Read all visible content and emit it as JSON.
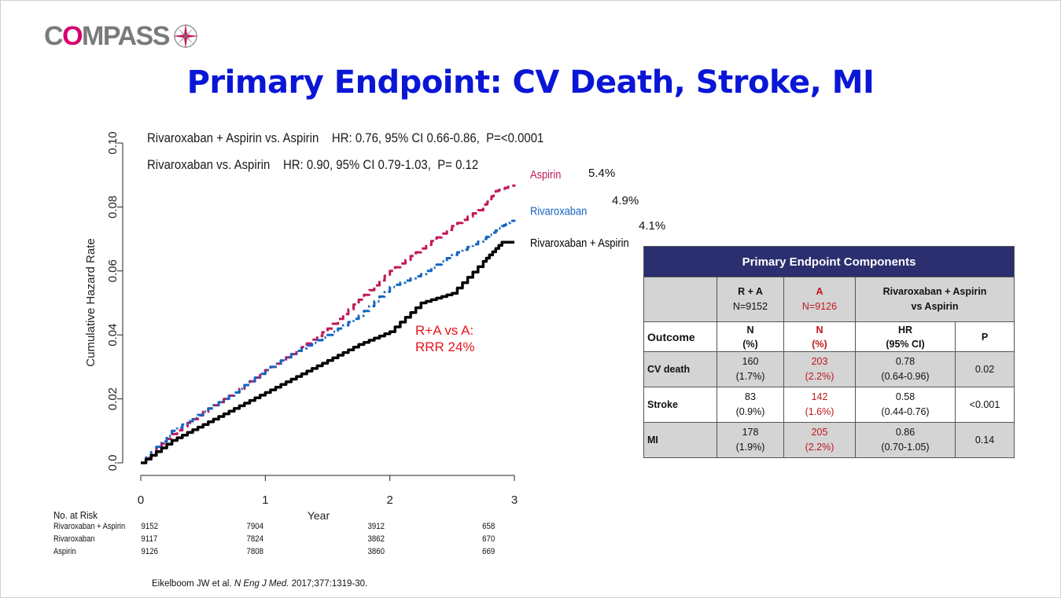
{
  "logo": {
    "text_pre": "C",
    "text_accent": "O",
    "text_post": "MPASS"
  },
  "title": "Primary Endpoint: CV Death, Stroke, MI",
  "hr_lines": [
    "Rivaroxaban + Aspirin vs. Aspirin    HR: 0.76, 95% CI 0.66-0.86,  P=<0.0001",
    "Rivaroxaban vs. Aspirin    HR: 0.90, 95% CI 0.79-1.03,  P= 0.12"
  ],
  "annotation": {
    "line1": "R+A vs A:",
    "line2": "RRR 24%"
  },
  "colors": {
    "title": "#0a16d6",
    "aspirin": "#c2185b",
    "rivaroxaban": "#1565c0",
    "combo": "#000000",
    "table_header": "#2b2f6f",
    "accent_red": "#e8141e"
  },
  "chart_data": {
    "type": "line",
    "title": "",
    "xlabel": "Year",
    "ylabel": "Cumulative Hazard Rate",
    "xlim": [
      0,
      3
    ],
    "ylim": [
      0,
      0.1
    ],
    "x_ticks": [
      "0",
      "1",
      "2",
      "3"
    ],
    "y_ticks": [
      "0.0",
      "0.02",
      "0.04",
      "0.06",
      "0.08",
      "0.10"
    ],
    "series": [
      {
        "name": "Aspirin",
        "end_label": "5.4%",
        "style": "dashed",
        "x": [
          0,
          0.25,
          0.5,
          0.75,
          1.0,
          1.25,
          1.5,
          1.75,
          2.0,
          2.25,
          2.5,
          2.75,
          2.85,
          3.0
        ],
        "y": [
          0,
          0.009,
          0.016,
          0.022,
          0.029,
          0.035,
          0.042,
          0.051,
          0.06,
          0.067,
          0.074,
          0.08,
          0.085,
          0.087
        ]
      },
      {
        "name": "Rivaroxaban",
        "end_label": "4.9%",
        "style": "dashdot",
        "x": [
          0,
          0.25,
          0.5,
          0.75,
          1.0,
          1.25,
          1.5,
          1.75,
          2.0,
          2.25,
          2.5,
          2.75,
          2.9,
          3.0
        ],
        "y": [
          0,
          0.01,
          0.016,
          0.022,
          0.029,
          0.035,
          0.04,
          0.046,
          0.055,
          0.059,
          0.065,
          0.07,
          0.074,
          0.076
        ]
      },
      {
        "name": "Rivaroxaban + Aspirin",
        "end_label": "4.1%",
        "style": "solid",
        "x": [
          0,
          0.25,
          0.5,
          0.75,
          1.0,
          1.25,
          1.5,
          1.75,
          2.0,
          2.25,
          2.5,
          2.75,
          2.9,
          3.0
        ],
        "y": [
          0,
          0.007,
          0.012,
          0.017,
          0.022,
          0.027,
          0.032,
          0.037,
          0.041,
          0.05,
          0.053,
          0.063,
          0.069,
          0.069
        ]
      }
    ]
  },
  "risk_table": {
    "header": "No. at Risk",
    "rows": [
      {
        "label": "Rivaroxaban + Aspirin",
        "values": [
          "9152",
          "7904",
          "3912",
          "658"
        ]
      },
      {
        "label": "Rivaroxaban",
        "values": [
          "9117",
          "7824",
          "3862",
          "670"
        ]
      },
      {
        "label": "Aspirin",
        "values": [
          "9126",
          "7808",
          "3860",
          "669"
        ]
      }
    ]
  },
  "components_table": {
    "title": "Primary Endpoint Components",
    "group_ra": "R + A",
    "group_ra_n": "N=9152",
    "group_a": "A",
    "group_a_n": "N=9126",
    "group_cmp1": "Rivaroxaban + Aspirin",
    "group_cmp2": "vs Aspirin",
    "col_outcome": "Outcome",
    "col_n": "N",
    "col_pct": "(%)",
    "col_hr": "HR",
    "col_ci": "(95% CI)",
    "col_p": "P",
    "rows": [
      {
        "outcome": "CV death",
        "ra_n": "160",
        "ra_pct": "(1.7%)",
        "a_n": "203",
        "a_pct": "(2.2%)",
        "hr": "0.78",
        "ci": "(0.64-0.96)",
        "p": "0.02"
      },
      {
        "outcome": "Stroke",
        "ra_n": "83",
        "ra_pct": "(0.9%)",
        "a_n": "142",
        "a_pct": "(1.6%)",
        "hr": "0.58",
        "ci": "(0.44-0.76)",
        "p": "<0.001"
      },
      {
        "outcome": "MI",
        "ra_n": "178",
        "ra_pct": "(1.9%)",
        "a_n": "205",
        "a_pct": "(2.2%)",
        "hr": "0.86",
        "ci": "(0.70-1.05)",
        "p": "0.14"
      }
    ]
  },
  "citation": {
    "authors": "Eikelboom JW et al. ",
    "journal": "N Eng J Med.",
    "rest": " 2017;377:1319-30."
  }
}
